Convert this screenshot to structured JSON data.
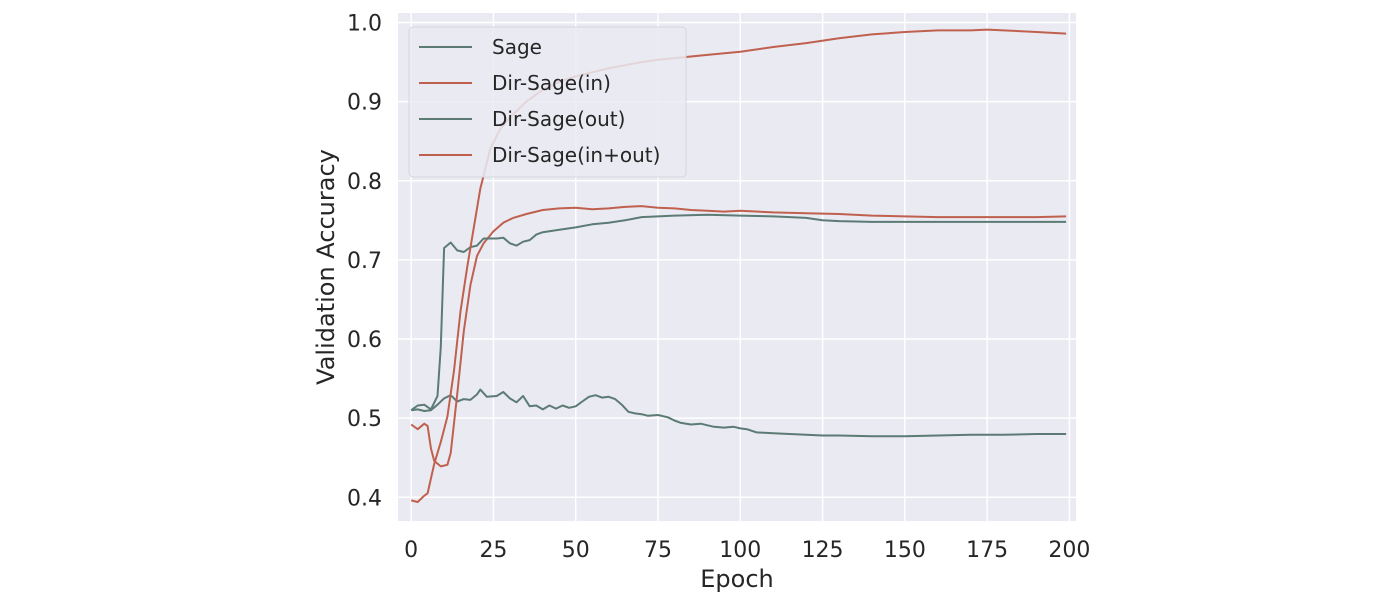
{
  "chart_data": {
    "type": "line",
    "title": "",
    "xlabel": "Epoch",
    "ylabel": "Validation Accuracy",
    "xlim": [
      -4,
      202
    ],
    "ylim": [
      0.37,
      1.012
    ],
    "xticks": [
      0,
      25,
      50,
      75,
      100,
      125,
      150,
      175,
      200
    ],
    "yticks": [
      0.4,
      0.5,
      0.6,
      0.7,
      0.8,
      0.9,
      1.0
    ],
    "grid": true,
    "legend_position": "top-left",
    "background": "#eaeaf2",
    "series": [
      {
        "name": "Sage",
        "color": "#5b7b74",
        "points": [
          [
            0,
            0.51
          ],
          [
            2,
            0.511
          ],
          [
            4,
            0.509
          ],
          [
            6,
            0.51
          ],
          [
            8,
            0.517
          ],
          [
            10,
            0.525
          ],
          [
            12,
            0.529
          ],
          [
            14,
            0.521
          ],
          [
            16,
            0.524
          ],
          [
            18,
            0.523
          ],
          [
            20,
            0.53
          ],
          [
            21,
            0.536
          ],
          [
            23,
            0.527
          ],
          [
            26,
            0.528
          ],
          [
            28,
            0.533
          ],
          [
            30,
            0.525
          ],
          [
            32,
            0.52
          ],
          [
            34,
            0.528
          ],
          [
            36,
            0.515
          ],
          [
            38,
            0.516
          ],
          [
            40,
            0.511
          ],
          [
            42,
            0.516
          ],
          [
            44,
            0.512
          ],
          [
            46,
            0.516
          ],
          [
            48,
            0.513
          ],
          [
            50,
            0.515
          ],
          [
            52,
            0.521
          ],
          [
            54,
            0.527
          ],
          [
            56,
            0.529
          ],
          [
            58,
            0.526
          ],
          [
            60,
            0.527
          ],
          [
            62,
            0.524
          ],
          [
            64,
            0.517
          ],
          [
            66,
            0.508
          ],
          [
            68,
            0.506
          ],
          [
            70,
            0.505
          ],
          [
            72,
            0.503
          ],
          [
            75,
            0.504
          ],
          [
            78,
            0.501
          ],
          [
            80,
            0.497
          ],
          [
            82,
            0.494
          ],
          [
            85,
            0.492
          ],
          [
            88,
            0.493
          ],
          [
            90,
            0.491
          ],
          [
            92,
            0.489
          ],
          [
            95,
            0.488
          ],
          [
            98,
            0.489
          ],
          [
            100,
            0.487
          ],
          [
            102,
            0.486
          ],
          [
            105,
            0.482
          ],
          [
            110,
            0.481
          ],
          [
            120,
            0.479
          ],
          [
            125,
            0.478
          ],
          [
            130,
            0.478
          ],
          [
            140,
            0.477
          ],
          [
            150,
            0.477
          ],
          [
            160,
            0.478
          ],
          [
            170,
            0.479
          ],
          [
            180,
            0.479
          ],
          [
            190,
            0.48
          ],
          [
            199,
            0.48
          ]
        ]
      },
      {
        "name": "Dir-Sage(in)",
        "color": "#c0604e",
        "points": [
          [
            0,
            0.492
          ],
          [
            2,
            0.486
          ],
          [
            4,
            0.493
          ],
          [
            5,
            0.49
          ],
          [
            6,
            0.462
          ],
          [
            7,
            0.446
          ],
          [
            9,
            0.439
          ],
          [
            11,
            0.441
          ],
          [
            12,
            0.456
          ],
          [
            14,
            0.53
          ],
          [
            16,
            0.61
          ],
          [
            18,
            0.668
          ],
          [
            20,
            0.705
          ],
          [
            22,
            0.721
          ],
          [
            25,
            0.736
          ],
          [
            28,
            0.747
          ],
          [
            31,
            0.753
          ],
          [
            35,
            0.758
          ],
          [
            40,
            0.763
          ],
          [
            45,
            0.765
          ],
          [
            50,
            0.766
          ],
          [
            55,
            0.764
          ],
          [
            60,
            0.765
          ],
          [
            65,
            0.767
          ],
          [
            70,
            0.768
          ],
          [
            75,
            0.766
          ],
          [
            80,
            0.765
          ],
          [
            85,
            0.763
          ],
          [
            90,
            0.762
          ],
          [
            95,
            0.761
          ],
          [
            100,
            0.762
          ],
          [
            110,
            0.76
          ],
          [
            120,
            0.759
          ],
          [
            130,
            0.758
          ],
          [
            140,
            0.756
          ],
          [
            150,
            0.755
          ],
          [
            160,
            0.754
          ],
          [
            170,
            0.754
          ],
          [
            180,
            0.754
          ],
          [
            190,
            0.754
          ],
          [
            199,
            0.755
          ]
        ]
      },
      {
        "name": "Dir-Sage(out)",
        "color": "#5b7b74",
        "points": [
          [
            0,
            0.51
          ],
          [
            2,
            0.516
          ],
          [
            4,
            0.517
          ],
          [
            6,
            0.511
          ],
          [
            8,
            0.528
          ],
          [
            9,
            0.59
          ],
          [
            10,
            0.715
          ],
          [
            12,
            0.722
          ],
          [
            14,
            0.712
          ],
          [
            16,
            0.71
          ],
          [
            18,
            0.716
          ],
          [
            20,
            0.718
          ],
          [
            22,
            0.727
          ],
          [
            24,
            0.727
          ],
          [
            26,
            0.727
          ],
          [
            28,
            0.728
          ],
          [
            30,
            0.721
          ],
          [
            32,
            0.718
          ],
          [
            34,
            0.723
          ],
          [
            36,
            0.725
          ],
          [
            38,
            0.732
          ],
          [
            40,
            0.735
          ],
          [
            45,
            0.738
          ],
          [
            50,
            0.741
          ],
          [
            55,
            0.745
          ],
          [
            60,
            0.747
          ],
          [
            65,
            0.75
          ],
          [
            70,
            0.754
          ],
          [
            75,
            0.755
          ],
          [
            80,
            0.756
          ],
          [
            90,
            0.757
          ],
          [
            100,
            0.756
          ],
          [
            110,
            0.755
          ],
          [
            120,
            0.753
          ],
          [
            125,
            0.75
          ],
          [
            130,
            0.749
          ],
          [
            140,
            0.748
          ],
          [
            150,
            0.748
          ],
          [
            160,
            0.748
          ],
          [
            170,
            0.748
          ],
          [
            180,
            0.748
          ],
          [
            190,
            0.748
          ],
          [
            199,
            0.748
          ]
        ]
      },
      {
        "name": "Dir-Sage(in+out)",
        "color": "#c0604e",
        "points": [
          [
            0,
            0.396
          ],
          [
            2,
            0.394
          ],
          [
            4,
            0.402
          ],
          [
            5,
            0.405
          ],
          [
            7,
            0.442
          ],
          [
            9,
            0.47
          ],
          [
            11,
            0.502
          ],
          [
            13,
            0.56
          ],
          [
            15,
            0.635
          ],
          [
            17,
            0.69
          ],
          [
            19,
            0.74
          ],
          [
            21,
            0.79
          ],
          [
            24,
            0.84
          ],
          [
            27,
            0.865
          ],
          [
            30,
            0.88
          ],
          [
            35,
            0.9
          ],
          [
            40,
            0.915
          ],
          [
            45,
            0.925
          ],
          [
            50,
            0.932
          ],
          [
            55,
            0.937
          ],
          [
            60,
            0.942
          ],
          [
            65,
            0.946
          ],
          [
            70,
            0.95
          ],
          [
            75,
            0.953
          ],
          [
            80,
            0.955
          ],
          [
            90,
            0.959
          ],
          [
            100,
            0.963
          ],
          [
            110,
            0.969
          ],
          [
            120,
            0.974
          ],
          [
            130,
            0.98
          ],
          [
            140,
            0.985
          ],
          [
            150,
            0.988
          ],
          [
            160,
            0.99
          ],
          [
            170,
            0.99
          ],
          [
            175,
            0.991
          ],
          [
            180,
            0.99
          ],
          [
            190,
            0.988
          ],
          [
            199,
            0.986
          ]
        ]
      }
    ]
  }
}
